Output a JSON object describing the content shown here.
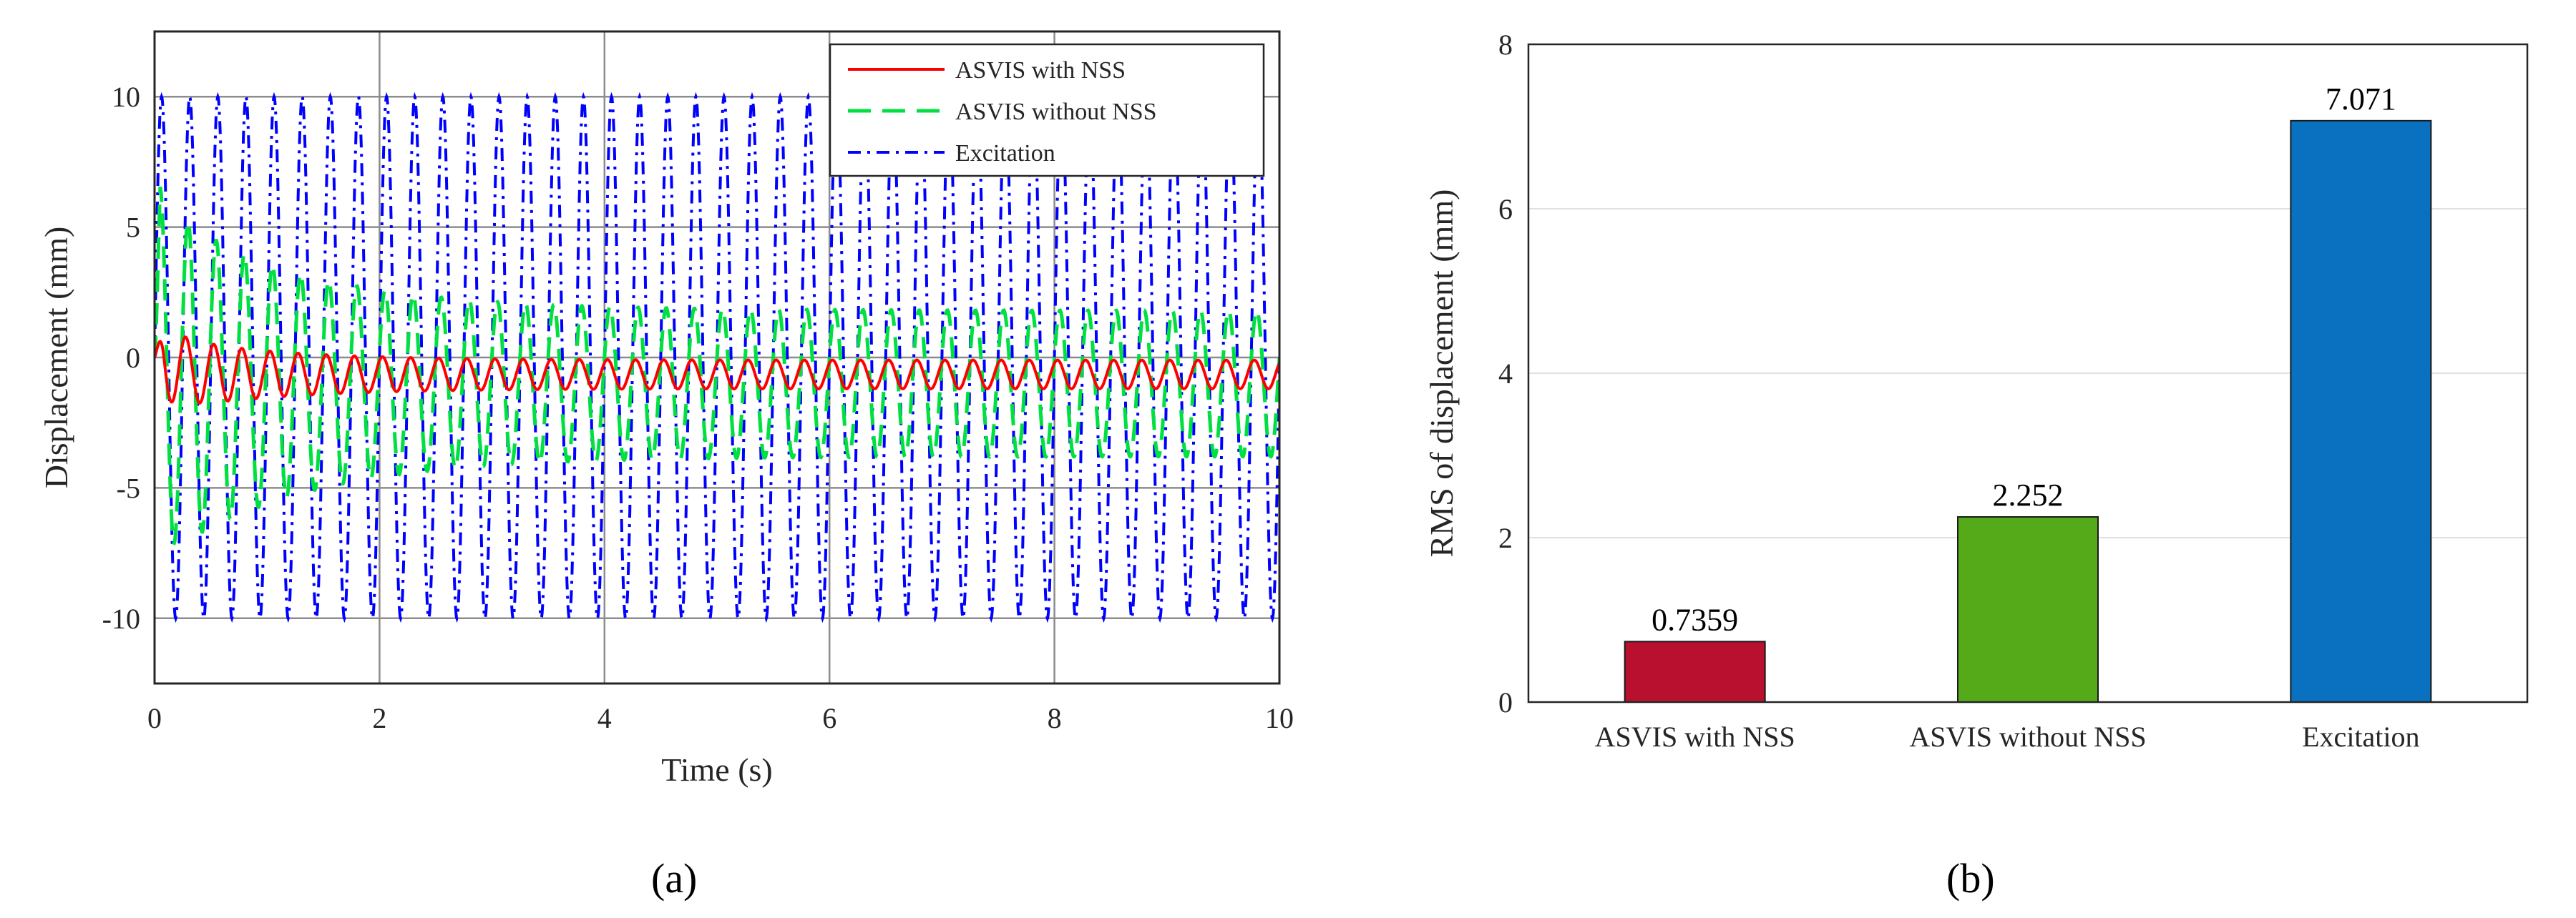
{
  "colors": {
    "asvis_with_nss": "#ff0000",
    "asvis_without_nss": "#00e040",
    "excitation": "#0000ff",
    "bar_with_nss": "#b8102e",
    "bar_without_nss": "#55aa1a",
    "bar_excitation": "#0a70c0"
  },
  "panels": {
    "a": "(a)",
    "b": "(b)"
  },
  "chart_data": [
    {
      "type": "line",
      "xlabel": "Time (s)",
      "ylabel": "Displacement (mm)",
      "xlim": [
        0,
        10
      ],
      "ylim": [
        -12.5,
        12.5
      ],
      "xticks": [
        0,
        2,
        4,
        6,
        8,
        10
      ],
      "yticks": [
        -10,
        -5,
        0,
        5,
        10
      ],
      "grid": true,
      "legend_position": "top-right",
      "series": [
        {
          "name": "ASVIS with NSS",
          "style": "solid",
          "freq_hz": 4,
          "mean": -0.65,
          "amp_start": 1.5,
          "amp_end": 0.55,
          "peak_near": [
            0.3,
            -2.2
          ]
        },
        {
          "name": "ASVIS without NSS",
          "style": "dashed",
          "freq_hz": 4,
          "mean": -1.0,
          "amp_start": 7.0,
          "amp_end": 2.8,
          "trough_near": [
            0.45,
            -7.3
          ]
        },
        {
          "name": "Excitation",
          "style": "dash-dot",
          "freq_hz": 4,
          "amplitude": 10
        }
      ]
    },
    {
      "type": "bar",
      "categories": [
        "ASVIS with NSS",
        "ASVIS without NSS",
        "Excitation"
      ],
      "values": [
        0.7359,
        2.252,
        7.071
      ],
      "value_labels": [
        "0.7359",
        "2.252",
        "7.071"
      ],
      "ylabel": "RMS of displacement (mm)",
      "ylim": [
        0,
        8
      ],
      "yticks": [
        0,
        2,
        4,
        6,
        8
      ],
      "grid": "y"
    }
  ]
}
